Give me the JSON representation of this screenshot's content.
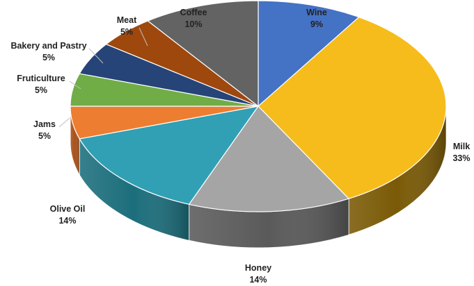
{
  "chart_data": {
    "type": "pie",
    "style": "3d",
    "title": "",
    "legend": "none",
    "slices": [
      {
        "label": "Wine",
        "value": 9,
        "value_label": "9%",
        "color": "#4472C4",
        "side_color": "#2c4d88"
      },
      {
        "label": "Milk",
        "value": 33,
        "value_label": "33%",
        "color": "#F5BC1C",
        "side_color": "#7a5a06"
      },
      {
        "label": "Honey",
        "value": 14,
        "value_label": "14%",
        "color": "#A5A5A5",
        "side_color": "#5a5a5a"
      },
      {
        "label": "Olive Oil",
        "value": 14,
        "value_label": "14%",
        "color": "#31A0B4",
        "side_color": "#1c6e7c"
      },
      {
        "label": "Jams",
        "value": 5,
        "value_label": "5%",
        "color": "#ED7D31",
        "side_color": "#a9521a"
      },
      {
        "label": "Fruticulture",
        "value": 5,
        "value_label": "5%",
        "color": "#70AD47",
        "side_color": "#4a7a2c"
      },
      {
        "label": "Bakery and Pastry",
        "value": 5,
        "value_label": "5%",
        "color": "#264478",
        "side_color": "#142a52"
      },
      {
        "label": "Meat",
        "value": 5,
        "value_label": "5%",
        "color": "#9E480E",
        "side_color": "#6a2e06"
      },
      {
        "label": "Coffee",
        "value": 10,
        "value_label": "10%",
        "color": "#636363",
        "side_color": "#3a3a3a"
      }
    ]
  }
}
